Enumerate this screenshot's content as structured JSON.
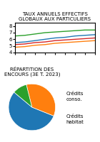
{
  "chart_data": [
    {
      "type": "line",
      "title": "TAUX ANNUELS EFFECTIFS GLOBAUX AUX PARTICULIERS",
      "categories": [
        null,
        null,
        null,
        null,
        null,
        null,
        null,
        null,
        null
      ],
      "series": [
        {
          "values": [
            5.5,
            5.6,
            5.8,
            6.0,
            6.2,
            6.3,
            6.5,
            6.6,
            6.7
          ]
        },
        {
          "values": [
            4.8,
            4.9,
            5.1,
            5.2,
            5.4,
            5.5,
            5.6,
            5.7,
            5.8
          ]
        },
        {
          "values": [
            6.5,
            6.6,
            6.8,
            7.0,
            7.1,
            7.2,
            7.3,
            7.4,
            7.4
          ]
        },
        {
          "values": [
            5.2,
            5.3,
            5.5,
            5.6,
            5.8,
            5.9,
            6.0,
            6.1,
            6.2
          ]
        }
      ],
      "ylim": [
        4.0,
        8.5
      ],
      "yticks": [
        4,
        5,
        6,
        7,
        8
      ],
      "tick_labels": "y",
      "grid": false
    },
    {
      "type": "pie",
      "title": "RÉPARTITION DES ENCOURS (3E T. 2023)",
      "values": [
        55,
        35,
        10
      ],
      "annotations": [
        "Crédits\nconso.",
        "Crédits\nhabitat"
      ]
    }
  ]
}
